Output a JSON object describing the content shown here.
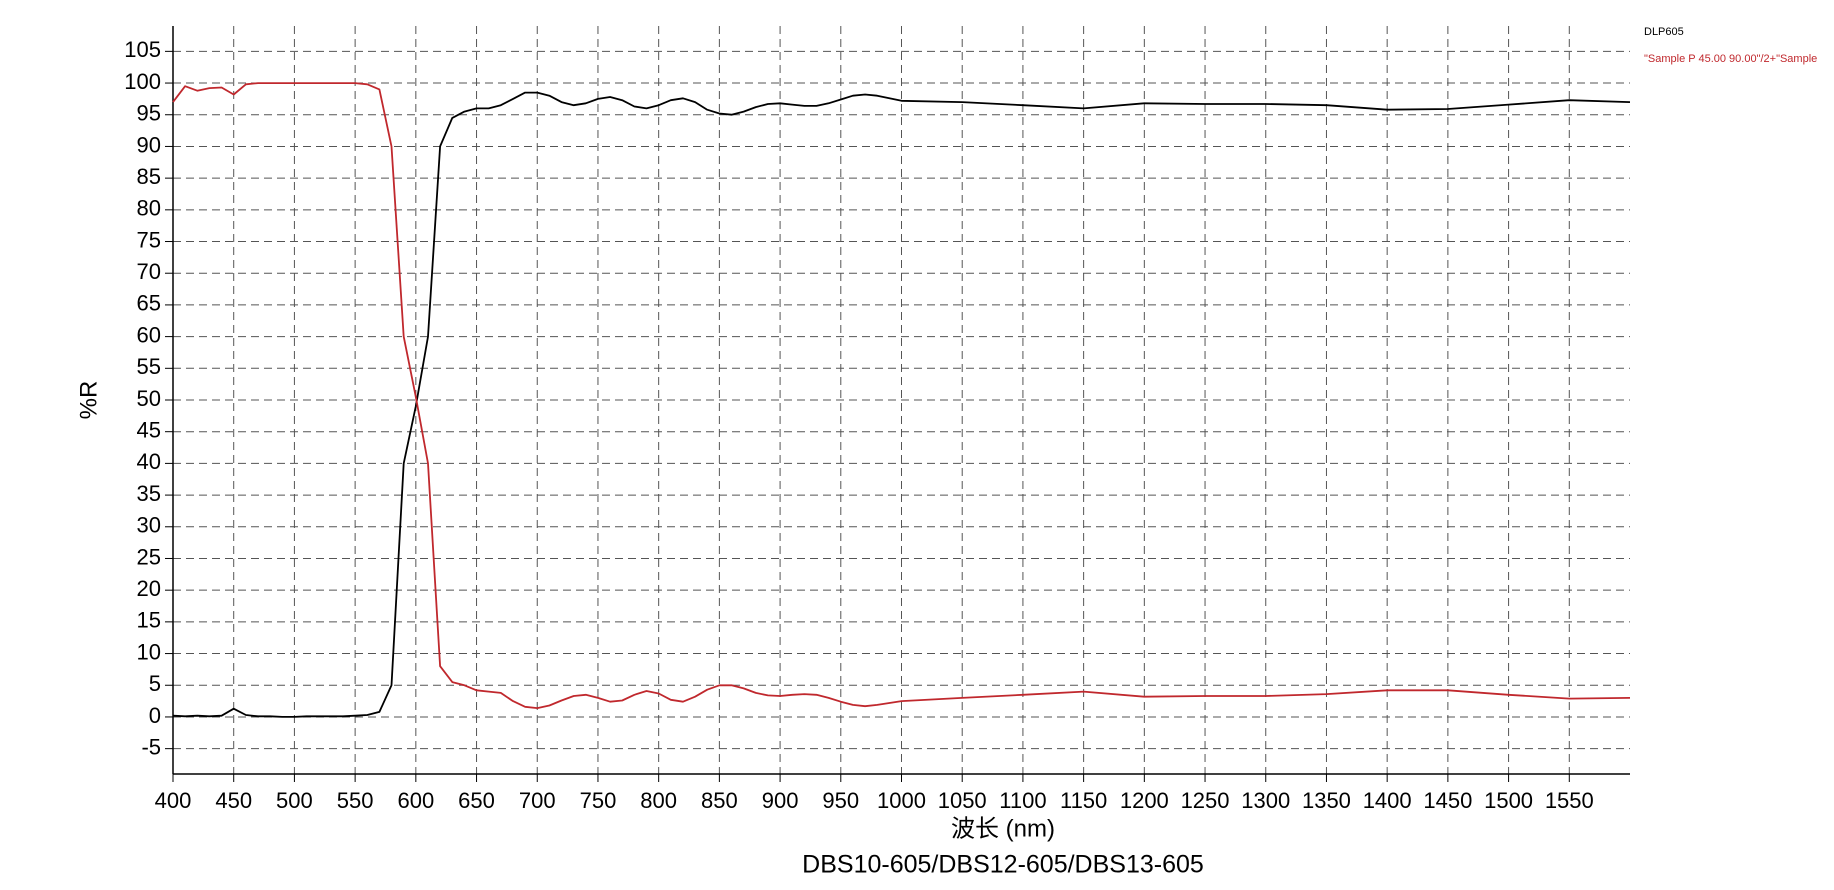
{
  "chart_data": {
    "type": "line",
    "subtitle": "DBS10-605/DBS12-605/DBS13-605",
    "x_label": "波长 (nm)",
    "y_label": "%R",
    "x": [
      400,
      410,
      420,
      430,
      440,
      450,
      460,
      470,
      480,
      490,
      500,
      510,
      520,
      530,
      540,
      550,
      560,
      570,
      580,
      590,
      600,
      610,
      620,
      630,
      640,
      650,
      660,
      670,
      680,
      690,
      700,
      710,
      720,
      730,
      740,
      750,
      760,
      770,
      780,
      790,
      800,
      810,
      820,
      830,
      840,
      850,
      860,
      870,
      880,
      890,
      900,
      910,
      920,
      930,
      940,
      950,
      960,
      970,
      980,
      990,
      1000,
      1050,
      1100,
      1150,
      1200,
      1250,
      1300,
      1350,
      1400,
      1450,
      1500,
      1550,
      1600
    ],
    "series": [
      {
        "name": "DLP605",
        "color": "#000000",
        "values": [
          0.2,
          0.1,
          0.2,
          0.1,
          0.2,
          1.3,
          0.3,
          0.1,
          0.1,
          0,
          0,
          0.1,
          0.1,
          0.1,
          0.1,
          0.2,
          0.3,
          0.8,
          5,
          40,
          49,
          60,
          90,
          94.5,
          95.5,
          96,
          96,
          96.5,
          97.5,
          98.5,
          98.5,
          98,
          97,
          96.5,
          96.8,
          97.5,
          97.8,
          97.3,
          96.3,
          96,
          96.5,
          97.3,
          97.6,
          97,
          95.8,
          95.2,
          95,
          95.5,
          96.2,
          96.7,
          96.8,
          96.6,
          96.4,
          96.4,
          96.8,
          97.4,
          98,
          98.2,
          98,
          97.6,
          97.2,
          97,
          96.5,
          96,
          96.8,
          96.7,
          96.7,
          96.5,
          95.8,
          95.9,
          96.6,
          97.3,
          97
        ]
      },
      {
        "name": "\"Sample P 45.00 90.00\"/2+\"Sample",
        "color": "#c0282d",
        "values": [
          97,
          99.5,
          98.8,
          99.2,
          99.3,
          98.2,
          99.8,
          100,
          100,
          100,
          100,
          100,
          100,
          100,
          100,
          100,
          99.8,
          99,
          90,
          60,
          50.5,
          40,
          8,
          5.5,
          5,
          4.2,
          4,
          3.8,
          2.5,
          1.6,
          1.4,
          1.8,
          2.6,
          3.3,
          3.5,
          3,
          2.4,
          2.6,
          3.5,
          4.1,
          3.7,
          2.7,
          2.4,
          3.2,
          4.3,
          5,
          5,
          4.5,
          3.8,
          3.4,
          3.3,
          3.5,
          3.6,
          3.5,
          3,
          2.4,
          1.9,
          1.7,
          1.9,
          2.2,
          2.5,
          3,
          3.5,
          4,
          3.2,
          3.3,
          3.3,
          3.6,
          4.2,
          4.2,
          3.5,
          2.9,
          3
        ]
      }
    ],
    "xlim": [
      400,
      1600
    ],
    "ylim": [
      -9,
      109
    ],
    "xticks": [
      400,
      450,
      500,
      550,
      600,
      650,
      700,
      750,
      800,
      850,
      900,
      950,
      1000,
      1050,
      1100,
      1150,
      1200,
      1250,
      1300,
      1350,
      1400,
      1450,
      1500,
      1550
    ],
    "yticks": [
      -5,
      0,
      5,
      10,
      15,
      20,
      25,
      30,
      35,
      40,
      45,
      50,
      55,
      60,
      65,
      70,
      75,
      80,
      85,
      90,
      95,
      100,
      105
    ],
    "grid": true
  }
}
